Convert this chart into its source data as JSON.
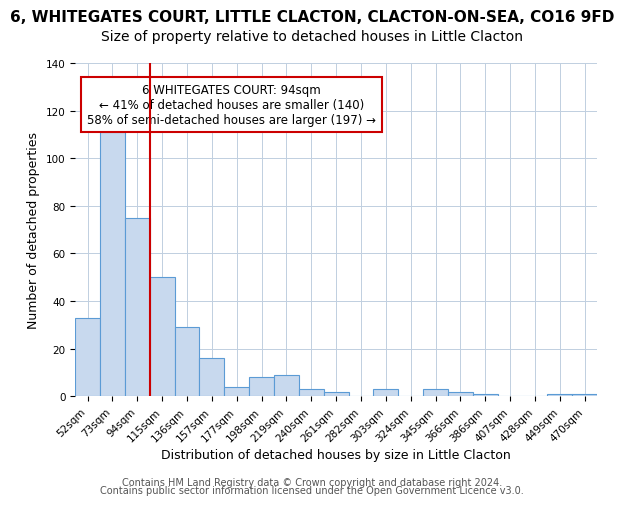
{
  "title": "6, WHITEGATES COURT, LITTLE CLACTON, CLACTON-ON-SEA, CO16 9FD",
  "subtitle": "Size of property relative to detached houses in Little Clacton",
  "xlabel": "Distribution of detached houses by size in Little Clacton",
  "ylabel": "Number of detached properties",
  "footer_line1": "Contains HM Land Registry data © Crown copyright and database right 2024.",
  "footer_line2": "Contains public sector information licensed under the Open Government Licence v3.0.",
  "bin_labels": [
    "52sqm",
    "73sqm",
    "94sqm",
    "115sqm",
    "136sqm",
    "157sqm",
    "177sqm",
    "198sqm",
    "219sqm",
    "240sqm",
    "261sqm",
    "282sqm",
    "303sqm",
    "324sqm",
    "345sqm",
    "366sqm",
    "386sqm",
    "407sqm",
    "428sqm",
    "449sqm",
    "470sqm"
  ],
  "bar_heights": [
    33,
    111,
    75,
    50,
    29,
    16,
    4,
    8,
    9,
    3,
    2,
    0,
    3,
    0,
    3,
    2,
    1,
    0,
    0,
    1,
    1
  ],
  "bar_color": "#c8d9ee",
  "bar_edge_color": "#5b9bd5",
  "red_line_bin_index": 2,
  "red_line_color": "#cc0000",
  "annotation_title": "6 WHITEGATES COURT: 94sqm",
  "annotation_line1": "← 41% of detached houses are smaller (140)",
  "annotation_line2": "58% of semi-detached houses are larger (197) →",
  "annotation_box_color": "#ffffff",
  "annotation_box_edge": "#cc0000",
  "ylim": [
    0,
    140
  ],
  "yticks": [
    0,
    20,
    40,
    60,
    80,
    100,
    120,
    140
  ],
  "background_color": "#ffffff",
  "grid_color": "#c0cfe0",
  "title_fontsize": 11,
  "subtitle_fontsize": 10,
  "axis_label_fontsize": 9,
  "tick_fontsize": 7.5,
  "footer_fontsize": 7
}
